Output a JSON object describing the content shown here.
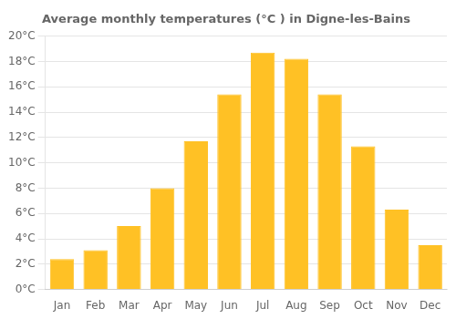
{
  "chart_data": {
    "type": "bar",
    "title": "Average monthly temperatures (°C ) in Digne-les-Bains",
    "categories": [
      "Jan",
      "Feb",
      "Mar",
      "Apr",
      "May",
      "Jun",
      "Jul",
      "Aug",
      "Sep",
      "Oct",
      "Nov",
      "Dec"
    ],
    "values": [
      2.4,
      3.1,
      5.0,
      8.0,
      11.7,
      15.4,
      18.7,
      18.2,
      15.4,
      11.3,
      6.3,
      3.5
    ],
    "color": "#FFC125",
    "ylim": [
      0,
      20
    ],
    "yticks": [
      {
        "value": 0,
        "label": "0°C"
      },
      {
        "value": 2,
        "label": "2°C"
      },
      {
        "value": 4,
        "label": "4°C"
      },
      {
        "value": 6,
        "label": "6°C"
      },
      {
        "value": 8,
        "label": "8°C"
      },
      {
        "value": 10,
        "label": "10°C"
      },
      {
        "value": 12,
        "label": "12°C"
      },
      {
        "value": 14,
        "label": "14°C"
      },
      {
        "value": 16,
        "label": "16°C"
      },
      {
        "value": 18,
        "label": "18°C"
      },
      {
        "value": 20,
        "label": "20°C"
      }
    ],
    "grid": true
  }
}
